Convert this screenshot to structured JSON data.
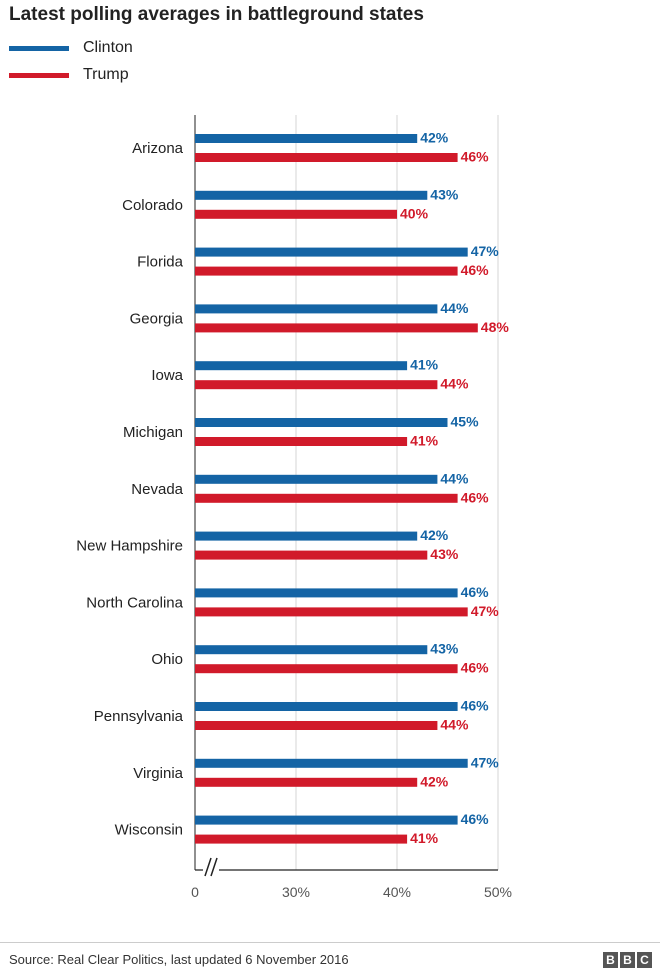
{
  "chart_data": {
    "type": "bar",
    "orientation": "horizontal",
    "title": "Latest polling averages in battleground states",
    "categories": [
      "Arizona",
      "Colorado",
      "Florida",
      "Georgia",
      "Iowa",
      "Michigan",
      "Nevada",
      "New Hampshire",
      "North Carolina",
      "Ohio",
      "Pennsylvania",
      "Virginia",
      "Wisconsin"
    ],
    "series": [
      {
        "name": "Clinton",
        "color": "#1464a5",
        "values": [
          42,
          43,
          47,
          44,
          41,
          45,
          44,
          42,
          46,
          43,
          46,
          47,
          46
        ]
      },
      {
        "name": "Trump",
        "color": "#d11a2a",
        "values": [
          46,
          40,
          46,
          48,
          44,
          41,
          46,
          43,
          47,
          46,
          44,
          42,
          41
        ]
      }
    ],
    "value_suffix": "%",
    "axis": {
      "broken": true,
      "ticks": [
        {
          "value": 0,
          "label": "0"
        },
        {
          "value": 30,
          "label": "30%"
        },
        {
          "value": 40,
          "label": "40%"
        },
        {
          "value": 50,
          "label": "50%"
        }
      ]
    },
    "grid": true,
    "legend_position": "top-left"
  },
  "footer": {
    "source": "Source: Real Clear Politics, last updated 6 November 2016",
    "logo_letters": [
      "B",
      "B",
      "C"
    ]
  }
}
